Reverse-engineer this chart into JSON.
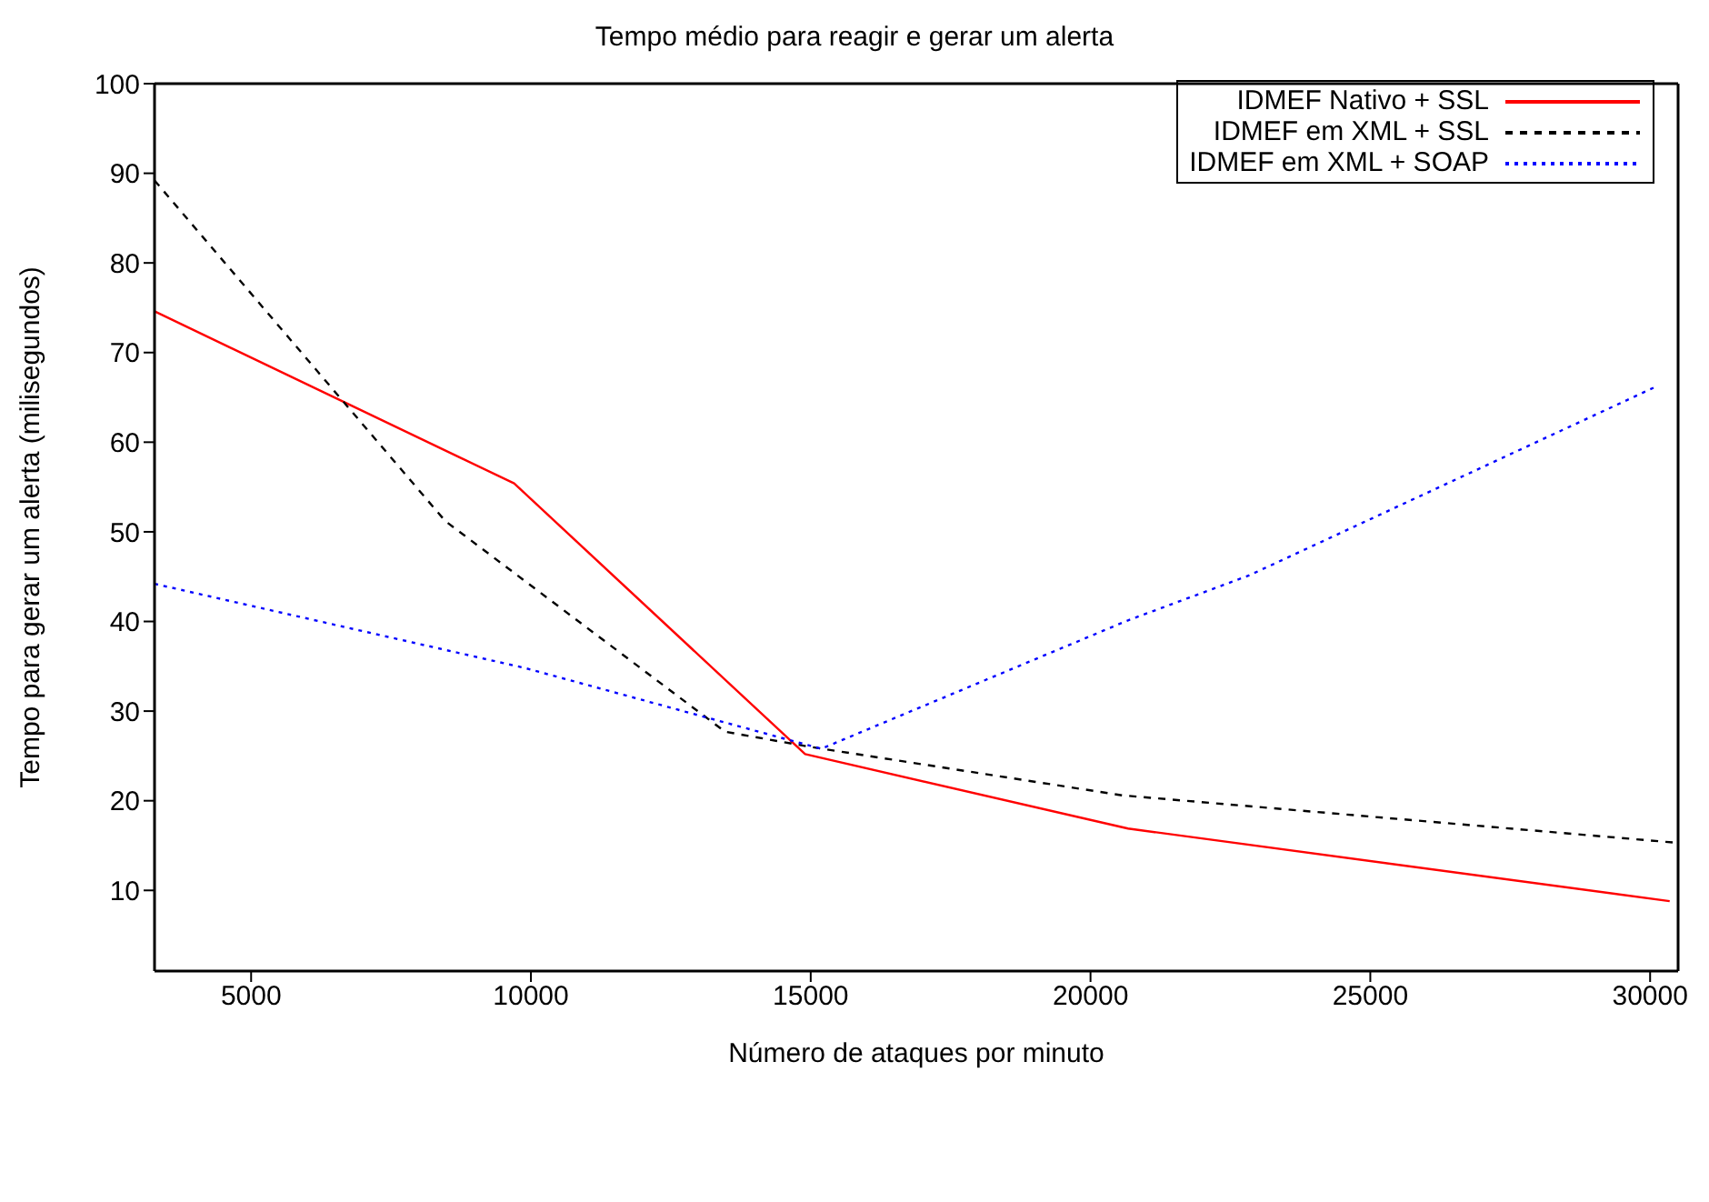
{
  "chart_data": {
    "type": "line",
    "title": "Tempo médio para reagir e gerar um alerta",
    "xlabel": "Número de ataques por minuto",
    "ylabel": "Tempo para gerar um alerta (milisegundos)",
    "xlim": [
      3274,
      30500
    ],
    "xticks": [
      5000,
      10000,
      15000,
      20000,
      25000,
      30000
    ],
    "ylim": [
      1,
      100
    ],
    "yticks": [
      10,
      20,
      30,
      40,
      50,
      60,
      70,
      80,
      90,
      100
    ],
    "grid": false,
    "legend": "top right",
    "marker": "none",
    "series": [
      {
        "name": "IDMEF Nativo + SSL",
        "color": "#ff0000",
        "line_style": "solid",
        "x": [
          3274,
          9700,
          14900,
          20670,
          30350
        ],
        "values": [
          74.6,
          55.4,
          25.2,
          16.9,
          8.8
        ]
      },
      {
        "name": "IDMEF em XML + SSL",
        "color": "#000000",
        "line_style": "dashed",
        "x": [
          3274,
          8470,
          13470,
          15000,
          20570,
          30500
        ],
        "values": [
          89.2,
          51.2,
          27.7,
          26,
          20.6,
          15.3
        ]
      },
      {
        "name": "IDMEF em XML + SOAP",
        "color": "#0000ff",
        "line_style": "dotted",
        "x": [
          3274,
          9900,
          15190,
          20660,
          22820,
          30140
        ],
        "values": [
          44.2,
          34.8,
          25.8,
          40.1,
          45.1,
          66.3
        ]
      }
    ]
  }
}
